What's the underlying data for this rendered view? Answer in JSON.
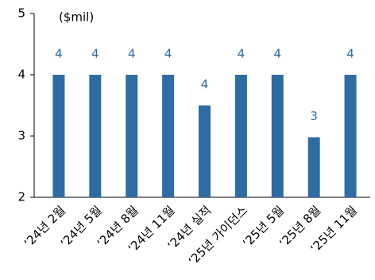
{
  "chart_data": {
    "type": "bar",
    "y_label": "($mil)",
    "categories": [
      "‘24년 2월",
      "‘24년 5월",
      "‘24년 8월",
      "‘24년 11월",
      "‘24년 실적",
      "‘25년 가이던스",
      "‘25년 5월",
      "‘25년 8월",
      "‘25년 11월"
    ],
    "values": [
      4,
      4,
      4,
      4,
      3.5,
      4,
      4,
      2.98,
      4
    ],
    "value_labels": [
      "4",
      "4",
      "4",
      "4",
      "4",
      "4",
      "4",
      "3",
      "4"
    ],
    "color": "#2e6ca4",
    "ylim": [
      2,
      5
    ],
    "yticks": [
      2,
      3,
      4,
      5
    ],
    "grid": false
  }
}
